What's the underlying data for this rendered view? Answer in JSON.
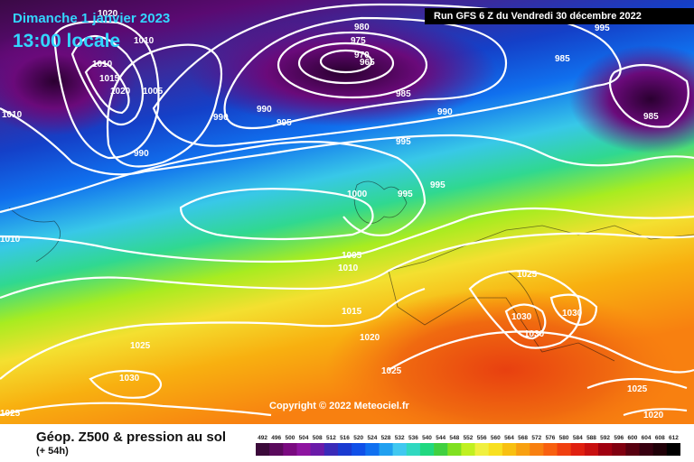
{
  "header": {
    "date_label": "Dimanche 1 janvier 2023",
    "time_label": "13:00 locale",
    "run_label": "Run GFS 6 Z du Vendredi 30 décembre 2022"
  },
  "copyright": "Copyright © 2022 Meteociel.fr",
  "footer": {
    "title": "Géop. Z500 & pression au sol",
    "subtitle": "(+ 54h)"
  },
  "legend": {
    "ticks": [
      "492",
      "496",
      "500",
      "504",
      "508",
      "512",
      "516",
      "520",
      "524",
      "528",
      "532",
      "536",
      "540",
      "544",
      "548",
      "552",
      "556",
      "560",
      "564",
      "568",
      "572",
      "576",
      "580",
      "584",
      "588",
      "592",
      "596",
      "600",
      "604",
      "608",
      "612"
    ],
    "colors": [
      "#3b0a3a",
      "#5a0a5c",
      "#7a0a80",
      "#8e14a0",
      "#6a1aa8",
      "#3a2ab8",
      "#1a3ad0",
      "#1050e8",
      "#1070f0",
      "#20a0f0",
      "#40c8f0",
      "#30d8c0",
      "#20d880",
      "#40d040",
      "#80e020",
      "#c0f020",
      "#f0f040",
      "#f8e020",
      "#f8c010",
      "#f8a010",
      "#f88010",
      "#f86010",
      "#f04010",
      "#e02010",
      "#c81010",
      "#a00010",
      "#800010",
      "#580010",
      "#380010",
      "#200008",
      "#000000"
    ]
  },
  "isobars": [
    {
      "value": "1020",
      "x_label": "1020"
    },
    {
      "value": "1010",
      "x_label": "1010"
    },
    {
      "value": "980"
    },
    {
      "value": "975"
    },
    {
      "value": "970"
    },
    {
      "value": "965"
    },
    {
      "value": "985"
    },
    {
      "value": "990"
    },
    {
      "value": "995"
    },
    {
      "value": "1000"
    },
    {
      "value": "1005"
    },
    {
      "value": "1015"
    },
    {
      "value": "1025"
    },
    {
      "value": "1030"
    }
  ],
  "map_labels": [
    {
      "text": "1020",
      "name": "isobar-label-1020-nw"
    },
    {
      "text": "1010",
      "name": "isobar-label-1010-nw"
    },
    {
      "text": "1010",
      "name": "isobar-label-1010-a"
    },
    {
      "text": "1015",
      "name": "isobar-label-1015-a"
    },
    {
      "text": "1020",
      "name": "isobar-label-1020-a"
    },
    {
      "text": "1005",
      "name": "isobar-label-1005-a"
    },
    {
      "text": "980",
      "name": "isobar-label-980"
    },
    {
      "text": "975",
      "name": "isobar-label-975"
    },
    {
      "text": "970",
      "name": "isobar-label-970"
    },
    {
      "text": "965",
      "name": "isobar-label-965"
    },
    {
      "text": "985",
      "name": "isobar-label-985-a"
    },
    {
      "text": "985",
      "name": "isobar-label-985-b"
    },
    {
      "text": "985",
      "name": "isobar-label-985-c"
    },
    {
      "text": "995",
      "name": "isobar-label-995-ne"
    },
    {
      "text": "1010",
      "name": "isobar-label-1010-w"
    },
    {
      "text": "990",
      "name": "isobar-label-990-a"
    },
    {
      "text": "990",
      "name": "isobar-label-990-b"
    },
    {
      "text": "995",
      "name": "isobar-label-995-a"
    },
    {
      "text": "990",
      "name": "isobar-label-990-c"
    },
    {
      "text": "990",
      "name": "isobar-label-990-d"
    },
    {
      "text": "995",
      "name": "isobar-label-995-b"
    },
    {
      "text": "995",
      "name": "isobar-label-995-c"
    },
    {
      "text": "1000",
      "name": "isobar-label-1000"
    },
    {
      "text": "995",
      "name": "isobar-label-995-d"
    },
    {
      "text": "1010",
      "name": "isobar-label-1010-b"
    },
    {
      "text": "1005",
      "name": "isobar-label-1005-b"
    },
    {
      "text": "1015",
      "name": "isobar-label-1015-b"
    },
    {
      "text": "1020",
      "name": "isobar-label-1020-b"
    },
    {
      "text": "1025",
      "name": "isobar-label-1025-a"
    },
    {
      "text": "1025",
      "name": "isobar-label-1025-b"
    },
    {
      "text": "1030",
      "name": "isobar-label-1030-a"
    },
    {
      "text": "1025",
      "name": "isobar-label-1025-c"
    },
    {
      "text": "1030",
      "name": "isobar-label-1030-b"
    },
    {
      "text": "1030",
      "name": "isobar-label-1030-c"
    },
    {
      "text": "1030",
      "name": "isobar-label-1030-d"
    },
    {
      "text": "1025",
      "name": "isobar-label-1025-d"
    },
    {
      "text": "1025",
      "name": "isobar-label-1025-e"
    },
    {
      "text": "1025",
      "name": "isobar-label-1025-f"
    },
    {
      "text": "1020",
      "name": "isobar-label-1020-c"
    }
  ]
}
